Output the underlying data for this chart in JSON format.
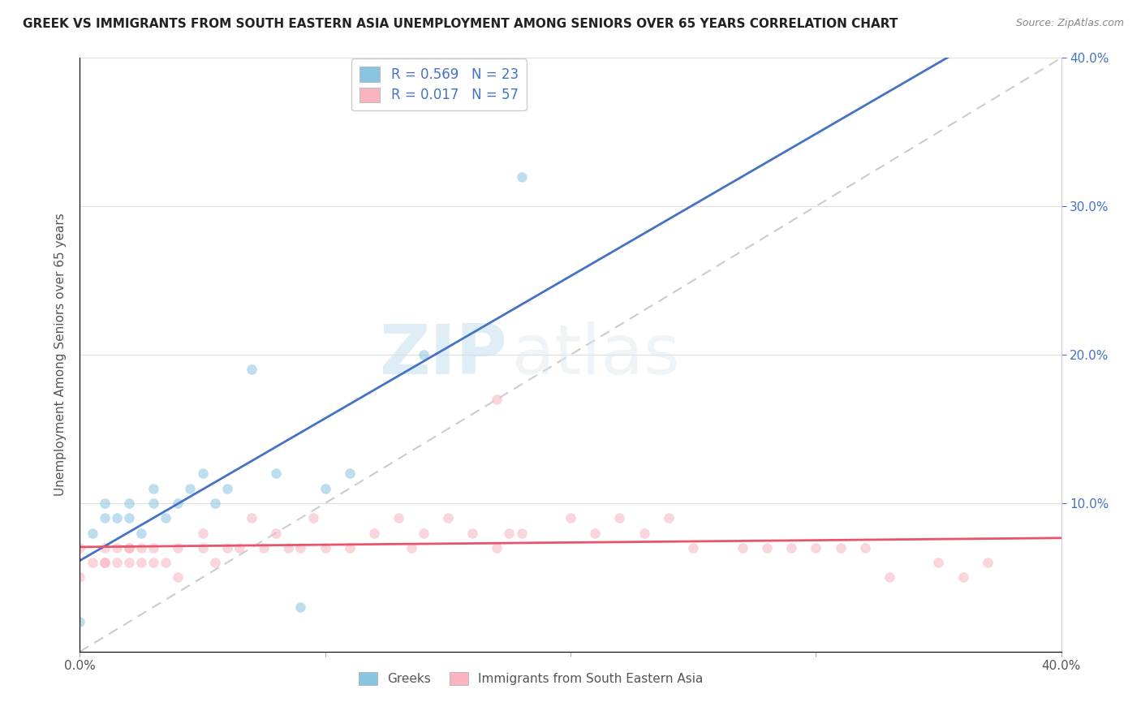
{
  "title": "GREEK VS IMMIGRANTS FROM SOUTH EASTERN ASIA UNEMPLOYMENT AMONG SENIORS OVER 65 YEARS CORRELATION CHART",
  "source": "Source: ZipAtlas.com",
  "ylabel": "Unemployment Among Seniors over 65 years",
  "xlim": [
    0.0,
    0.4
  ],
  "ylim": [
    0.0,
    0.4
  ],
  "series": [
    {
      "name": "Greeks",
      "R": 0.569,
      "N": 23,
      "scatter_color": "#89c4e1",
      "line_color": "#4472c4",
      "x": [
        0.0,
        0.005,
        0.01,
        0.01,
        0.015,
        0.02,
        0.02,
        0.025,
        0.03,
        0.03,
        0.035,
        0.04,
        0.045,
        0.05,
        0.055,
        0.06,
        0.07,
        0.08,
        0.09,
        0.1,
        0.11,
        0.14,
        0.18
      ],
      "y": [
        0.02,
        0.08,
        0.09,
        0.1,
        0.09,
        0.09,
        0.1,
        0.08,
        0.1,
        0.11,
        0.09,
        0.1,
        0.11,
        0.12,
        0.1,
        0.11,
        0.19,
        0.12,
        0.03,
        0.11,
        0.12,
        0.2,
        0.32
      ]
    },
    {
      "name": "Immigrants from South Eastern Asia",
      "R": 0.017,
      "N": 57,
      "scatter_color": "#f9b4c0",
      "line_color": "#e8546a",
      "x": [
        0.0,
        0.0,
        0.005,
        0.01,
        0.01,
        0.01,
        0.015,
        0.015,
        0.02,
        0.02,
        0.02,
        0.025,
        0.025,
        0.03,
        0.03,
        0.035,
        0.04,
        0.04,
        0.05,
        0.05,
        0.055,
        0.06,
        0.065,
        0.07,
        0.075,
        0.08,
        0.085,
        0.09,
        0.095,
        0.1,
        0.11,
        0.12,
        0.13,
        0.135,
        0.14,
        0.15,
        0.16,
        0.17,
        0.175,
        0.18,
        0.2,
        0.21,
        0.22,
        0.23,
        0.24,
        0.25,
        0.27,
        0.28,
        0.29,
        0.3,
        0.31,
        0.32,
        0.33,
        0.35,
        0.36,
        0.37,
        0.17
      ],
      "y": [
        0.05,
        0.07,
        0.06,
        0.06,
        0.07,
        0.06,
        0.07,
        0.06,
        0.07,
        0.06,
        0.07,
        0.06,
        0.07,
        0.06,
        0.07,
        0.06,
        0.07,
        0.05,
        0.08,
        0.07,
        0.06,
        0.07,
        0.07,
        0.09,
        0.07,
        0.08,
        0.07,
        0.07,
        0.09,
        0.07,
        0.07,
        0.08,
        0.09,
        0.07,
        0.08,
        0.09,
        0.08,
        0.07,
        0.08,
        0.08,
        0.09,
        0.08,
        0.09,
        0.08,
        0.09,
        0.07,
        0.07,
        0.07,
        0.07,
        0.07,
        0.07,
        0.07,
        0.05,
        0.06,
        0.05,
        0.06,
        0.17
      ]
    }
  ],
  "watermark_text": "ZIP",
  "watermark_text2": "atlas",
  "background_color": "#ffffff",
  "grid_color": "#e0e0e0",
  "diag_line_color": "#cccccc",
  "title_fontsize": 11,
  "source_fontsize": 9,
  "tick_label_color_y": "#4472c4",
  "tick_label_color_x": "#555555",
  "ylabel_color": "#555555",
  "legend_label_color": "#4472c4"
}
